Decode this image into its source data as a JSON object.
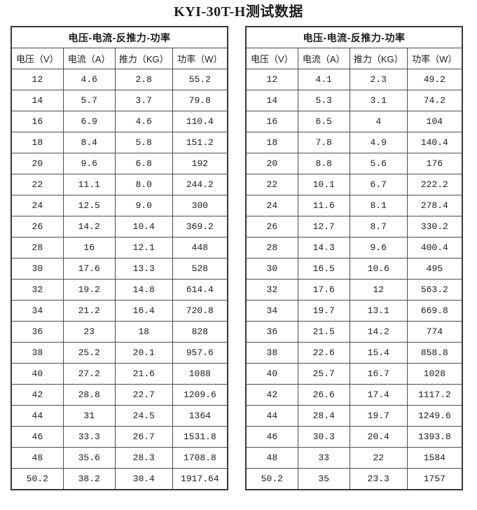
{
  "title": "KYI-30T-H测试数据",
  "tables": [
    {
      "group_header": "电压-电流-反推力-功率",
      "columns": [
        "电压（V）",
        "电流（A）",
        "推力（KG）",
        "功率（W）"
      ],
      "rows": [
        [
          "12",
          "4.6",
          "2.8",
          "55.2"
        ],
        [
          "14",
          "5.7",
          "3.7",
          "79.8"
        ],
        [
          "16",
          "6.9",
          "4.6",
          "110.4"
        ],
        [
          "18",
          "8.4",
          "5.8",
          "151.2"
        ],
        [
          "20",
          "9.6",
          "6.8",
          "192"
        ],
        [
          "22",
          "11.1",
          "8.0",
          "244.2"
        ],
        [
          "24",
          "12.5",
          "9.0",
          "300"
        ],
        [
          "26",
          "14.2",
          "10.4",
          "369.2"
        ],
        [
          "28",
          "16",
          "12.1",
          "448"
        ],
        [
          "30",
          "17.6",
          "13.3",
          "528"
        ],
        [
          "32",
          "19.2",
          "14.8",
          "614.4"
        ],
        [
          "34",
          "21.2",
          "16.4",
          "720.8"
        ],
        [
          "36",
          "23",
          "18",
          "828"
        ],
        [
          "38",
          "25.2",
          "20.1",
          "957.6"
        ],
        [
          "40",
          "27.2",
          "21.6",
          "1088"
        ],
        [
          "42",
          "28.8",
          "22.7",
          "1209.6"
        ],
        [
          "44",
          "31",
          "24.5",
          "1364"
        ],
        [
          "46",
          "33.3",
          "26.7",
          "1531.8"
        ],
        [
          "48",
          "35.6",
          "28.3",
          "1708.8"
        ],
        [
          "50.2",
          "38.2",
          "30.4",
          "1917.64"
        ]
      ]
    },
    {
      "group_header": "电压-电流-反推力-功率",
      "columns": [
        "电压（V）",
        "电流（A）",
        "推力（KG）",
        "功率（W）"
      ],
      "rows": [
        [
          "12",
          "4.1",
          "2.3",
          "49.2"
        ],
        [
          "14",
          "5.3",
          "3.1",
          "74.2"
        ],
        [
          "16",
          "6.5",
          "4",
          "104"
        ],
        [
          "18",
          "7.8",
          "4.9",
          "140.4"
        ],
        [
          "20",
          "8.8",
          "5.6",
          "176"
        ],
        [
          "22",
          "10.1",
          "6.7",
          "222.2"
        ],
        [
          "24",
          "11.6",
          "8.1",
          "278.4"
        ],
        [
          "26",
          "12.7",
          "8.7",
          "330.2"
        ],
        [
          "28",
          "14.3",
          "9.6",
          "400.4"
        ],
        [
          "30",
          "16.5",
          "10.6",
          "495"
        ],
        [
          "32",
          "17.6",
          "12",
          "563.2"
        ],
        [
          "34",
          "19.7",
          "13.1",
          "669.8"
        ],
        [
          "36",
          "21.5",
          "14.2",
          "774"
        ],
        [
          "38",
          "22.6",
          "15.4",
          "858.8"
        ],
        [
          "40",
          "25.7",
          "16.7",
          "1028"
        ],
        [
          "42",
          "26.6",
          "17.4",
          "1117.2"
        ],
        [
          "44",
          "28.4",
          "19.7",
          "1249.6"
        ],
        [
          "46",
          "30.3",
          "20.4",
          "1393.8"
        ],
        [
          "48",
          "33",
          "22",
          "1584"
        ],
        [
          "50.2",
          "35",
          "23.3",
          "1757"
        ]
      ]
    }
  ]
}
